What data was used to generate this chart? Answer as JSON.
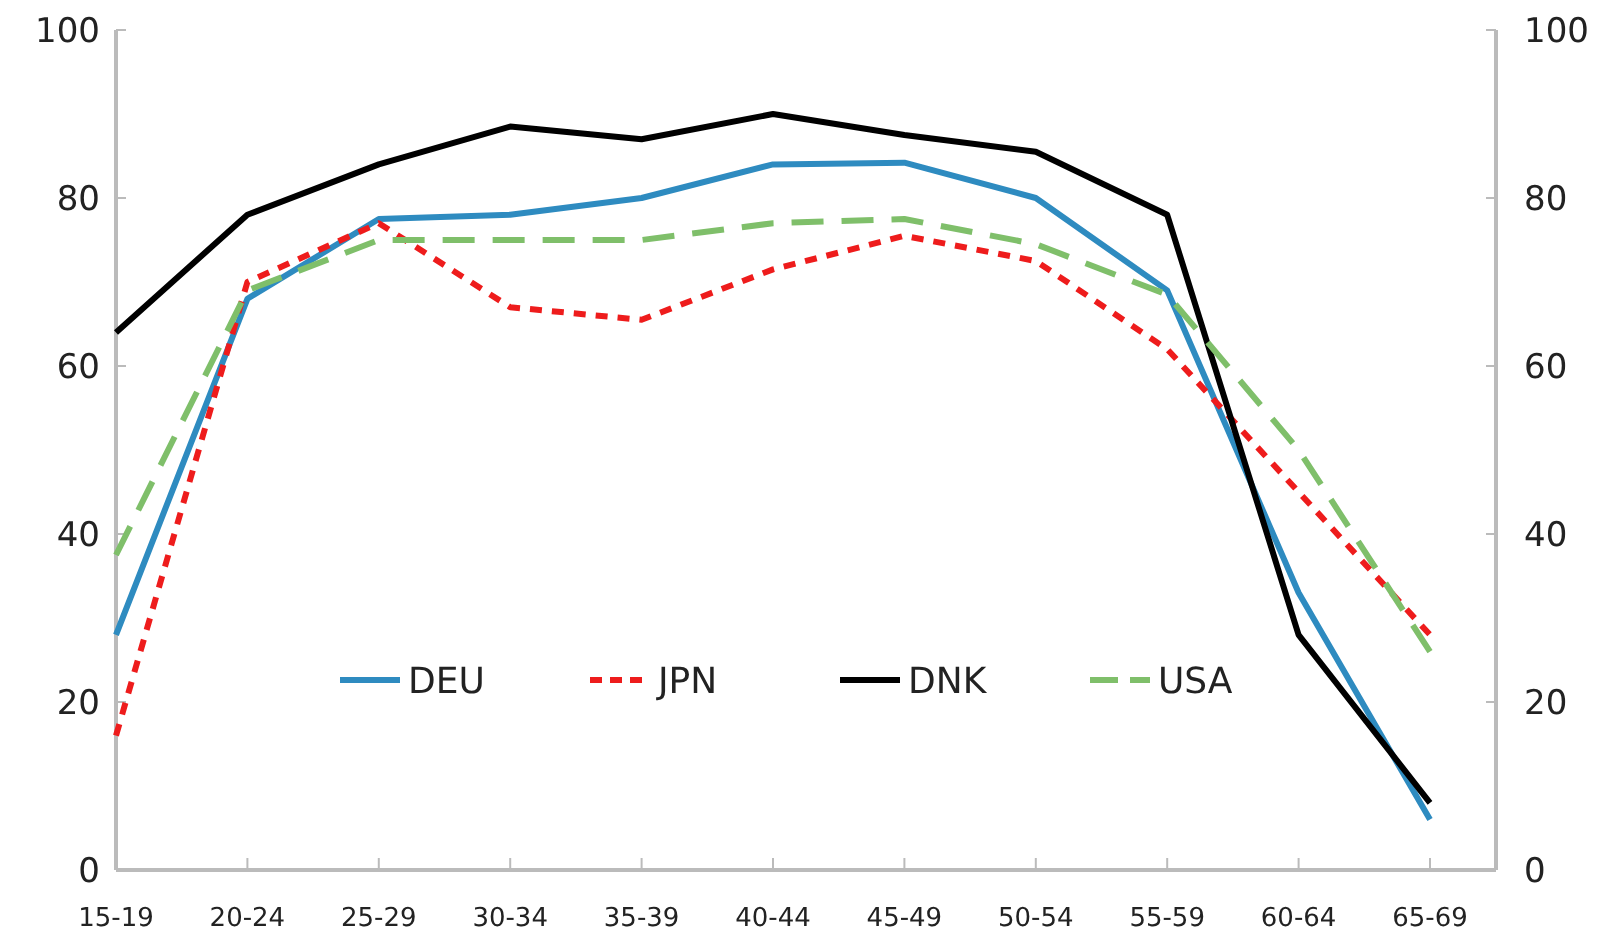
{
  "chart_data": {
    "type": "line",
    "categories": [
      "15-19",
      "20-24",
      "25-29",
      "30-34",
      "35-39",
      "40-44",
      "45-49",
      "50-54",
      "55-59",
      "60-64",
      "65-69"
    ],
    "series": [
      {
        "name": "DEU",
        "color": "#2e8bc0",
        "line_style": "solid",
        "values": [
          28,
          68,
          77.5,
          78,
          80,
          84,
          84.2,
          80,
          69,
          33,
          6
        ]
      },
      {
        "name": "JPN",
        "color": "#ee1c1c",
        "line_style": "dotted",
        "values": [
          16,
          70,
          77,
          67,
          65.5,
          71.5,
          75.5,
          72.5,
          62,
          45,
          28
        ]
      },
      {
        "name": "DNK",
        "color": "#000000",
        "line_style": "solid",
        "values": [
          64,
          78,
          84,
          88.5,
          87,
          90,
          87.5,
          85.5,
          78,
          28,
          8
        ]
      },
      {
        "name": "USA",
        "color": "#7fbf6a",
        "line_style": "dashed",
        "values": [
          37.5,
          69,
          75,
          75,
          75,
          77,
          77.5,
          74.5,
          68.5,
          50,
          26
        ]
      }
    ],
    "ylim": [
      0,
      100
    ],
    "yticks": [
      0,
      20,
      40,
      60,
      80,
      100
    ],
    "y2lim": [
      0,
      100
    ],
    "y2ticks": [
      0,
      20,
      40,
      60,
      80,
      100
    ],
    "legend": "bottom",
    "grid": false
  }
}
